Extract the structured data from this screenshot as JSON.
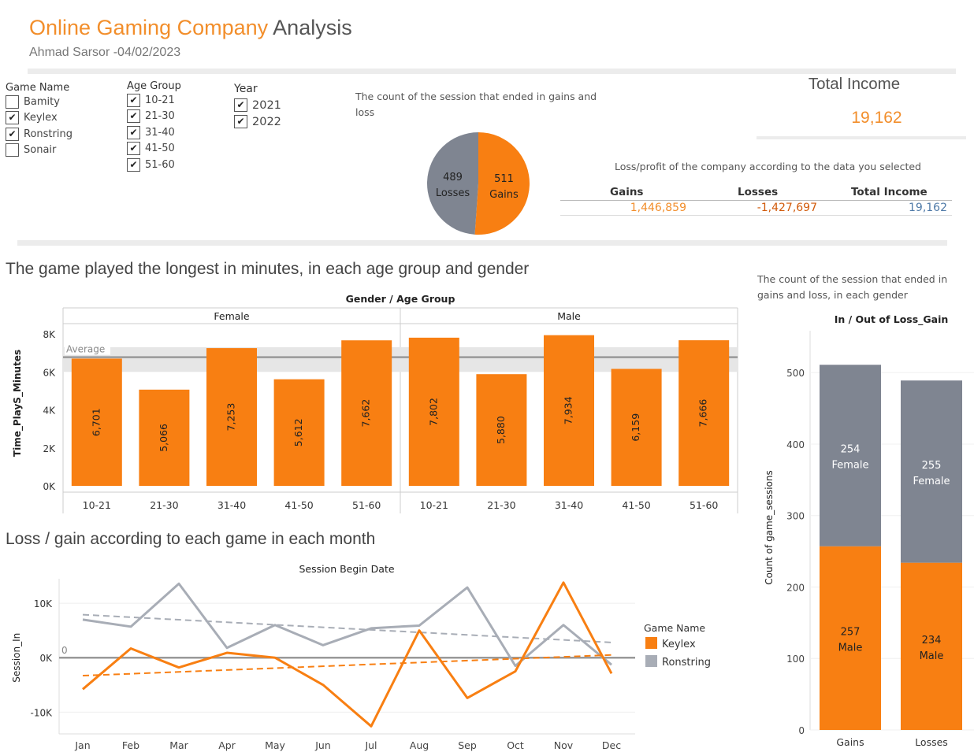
{
  "header": {
    "title_orange": "Online Gaming Company",
    "title_rest": "Analysis",
    "subtitle": "Ahmad Sarsor -04/02/2023"
  },
  "filters": {
    "game_name": {
      "title": "Game Name",
      "items": [
        {
          "label": "Bamity",
          "checked": false
        },
        {
          "label": "Keylex",
          "checked": true
        },
        {
          "label": "Ronstring",
          "checked": true
        },
        {
          "label": "Sonair",
          "checked": false
        }
      ]
    },
    "age_group": {
      "title": "Age Group",
      "items": [
        {
          "label": "10-21",
          "checked": true
        },
        {
          "label": "21-30",
          "checked": true
        },
        {
          "label": "31-40",
          "checked": true
        },
        {
          "label": "41-50",
          "checked": true
        },
        {
          "label": "51-60",
          "checked": true
        }
      ]
    },
    "year": {
      "title": "Year",
      "items": [
        {
          "label": "2021",
          "checked": true
        },
        {
          "label": "2022",
          "checked": true
        }
      ]
    }
  },
  "check_glyph": "✔",
  "colors": {
    "orange": "#f87f12",
    "gray": "#7f8591",
    "accent": "#f28e2b",
    "dark_orange": "#d15a0a",
    "blue": "#4e79a7"
  },
  "total_income": {
    "title": "Total Income",
    "value": "19,162"
  },
  "summary_table": {
    "caption": "Loss/profit of the company according to the data you selected",
    "headers": [
      "Gains",
      "Losses",
      "Total Income"
    ],
    "values": [
      "1,446,859",
      "-1,427,697",
      "19,162"
    ]
  },
  "sections": {
    "bar_heading": "The game played the longest in minutes, in each age group and gender",
    "line_heading": "Loss / gain according to each game in each month",
    "stack_heading": "The count of the session that ended in gains and loss, in each gender"
  },
  "chart_data": [
    {
      "type": "pie",
      "title": "The count of the session that ended in gains and loss",
      "slices": [
        {
          "label": "Gains",
          "value": 511,
          "color": "#f87f12"
        },
        {
          "label": "Losses",
          "value": 489,
          "color": "#7f8591"
        }
      ]
    },
    {
      "type": "bar",
      "title": "Gender  /  Age Group",
      "ylabel": "Time_PlayS_Minutes",
      "ylim": [
        0,
        8500
      ],
      "yticks": [
        0,
        2000,
        4000,
        6000,
        8000
      ],
      "ytick_labels": [
        "0K",
        "2K",
        "4K",
        "6K",
        "8K"
      ],
      "average_label": "Average",
      "average": 6773,
      "average_band": [
        6000,
        7300
      ],
      "panels": [
        {
          "name": "Female",
          "categories": [
            "10-21",
            "21-30",
            "31-40",
            "41-50",
            "51-60"
          ],
          "values": [
            6701,
            5066,
            7253,
            5612,
            7662
          ],
          "labels": [
            "6,701",
            "5,066",
            "7,253",
            "5,612",
            "7,662"
          ]
        },
        {
          "name": "Male",
          "categories": [
            "10-21",
            "21-30",
            "31-40",
            "41-50",
            "51-60"
          ],
          "values": [
            7802,
            5880,
            7934,
            6159,
            7666
          ],
          "labels": [
            "7,802",
            "5,880",
            "7,934",
            "6,159",
            "7,666"
          ]
        }
      ]
    },
    {
      "type": "line",
      "title": "Session Begin Date",
      "ylabel": "Session_In",
      "ylim": [
        -14000,
        14500
      ],
      "yticks": [
        -10000,
        0,
        10000
      ],
      "ytick_labels": [
        "-10K",
        "0K",
        "10K"
      ],
      "zero_label": "0",
      "x": [
        "Jan",
        "Feb",
        "Mar",
        "Apr",
        "May",
        "Jun",
        "Jul",
        "Aug",
        "Sep",
        "Oct",
        "Nov",
        "Dec"
      ],
      "legend_title": "Game Name",
      "series": [
        {
          "name": "Keylex",
          "color": "#f87f12",
          "values": [
            -5800,
            1700,
            -1800,
            900,
            0,
            -5000,
            -12600,
            5000,
            -7400,
            -2500,
            13800,
            -2900
          ],
          "trend": [
            -3300,
            500
          ]
        },
        {
          "name": "Ronstring",
          "color": "#a8adb6",
          "values": [
            7000,
            5700,
            13600,
            1800,
            6000,
            2300,
            5400,
            5900,
            12900,
            -1500,
            6000,
            -1300
          ],
          "trend": [
            7900,
            2800
          ]
        }
      ]
    },
    {
      "type": "bar",
      "stacked": true,
      "title": "In / Out of Loss_Gain",
      "ylabel": "Count of game_sessions",
      "ylim": [
        0,
        530
      ],
      "yticks": [
        0,
        100,
        200,
        300,
        400,
        500
      ],
      "ytick_labels": [
        "0",
        "100",
        "200",
        "300",
        "400",
        "500"
      ],
      "categories": [
        "Gains",
        "Losses"
      ],
      "series": [
        {
          "name": "Male",
          "color": "#f87f12",
          "values": [
            257,
            234
          ]
        },
        {
          "name": "Female",
          "color": "#7f8591",
          "values": [
            254,
            255
          ]
        }
      ]
    }
  ]
}
